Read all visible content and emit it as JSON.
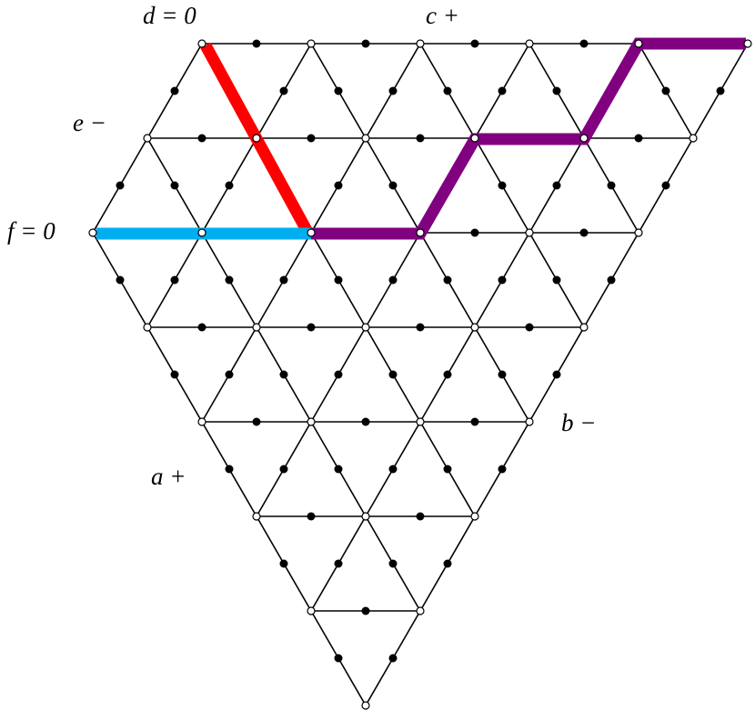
{
  "labels": [
    "d = 0",
    "c +",
    "e −",
    "f = 0",
    "b −",
    "a +"
  ]
}
